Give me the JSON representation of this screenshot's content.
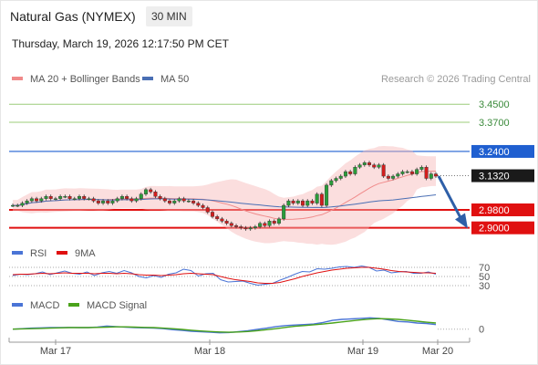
{
  "header": {
    "title": "Natural Gas (NYMEX)",
    "interval": "30 MIN",
    "timestamp": "Thursday, March 19, 2026 12:17:50 PM CET"
  },
  "colors": {
    "candle_up": "#2a9d3a",
    "candle_down": "#d31d1d",
    "resistance": "#1f5fd0",
    "support": "#e01010",
    "target_line": "#9ccc7a",
    "current": "#1a1a1a",
    "ma50": "#4a6fb4",
    "bollinger": "#f08a8a",
    "rsi": "#4a74d6",
    "rsi_ma": "#e01010",
    "macd": "#4a74d6",
    "macd_signal": "#4aa31a",
    "arrow": "#2e5fa8"
  },
  "chart_data": [
    {
      "type": "candlestick",
      "x": [
        "Mar 17",
        "Mar 18",
        "Mar 19",
        "Mar 20"
      ],
      "legend": [
        "MA 20 + Bollinger Bands",
        "MA 50"
      ],
      "watermark": "Research © 2026 Trading Central",
      "levels": [
        {
          "label": "3.4500",
          "value": 3.45,
          "kind": "target"
        },
        {
          "label": "3.3700",
          "value": 3.37,
          "kind": "target"
        },
        {
          "label": "3.2400",
          "value": 3.24,
          "kind": "resistance"
        },
        {
          "label": "3.1320",
          "value": 3.132,
          "kind": "current"
        },
        {
          "label": "2.9800",
          "value": 2.98,
          "kind": "support"
        },
        {
          "label": "2.9000",
          "value": 2.9,
          "kind": "support"
        }
      ],
      "ylim": [
        2.85,
        3.52
      ],
      "close_series": [
        3.0,
        3.0,
        3.01,
        3.02,
        3.03,
        3.02,
        3.03,
        3.04,
        3.03,
        3.03,
        3.04,
        3.04,
        3.03,
        3.03,
        3.04,
        3.03,
        3.03,
        3.02,
        3.01,
        3.02,
        3.01,
        3.02,
        3.03,
        3.04,
        3.03,
        3.02,
        3.03,
        3.05,
        3.07,
        3.06,
        3.04,
        3.03,
        3.02,
        3.01,
        3.02,
        3.03,
        3.02,
        3.02,
        3.01,
        3.0,
        2.99,
        2.97,
        2.95,
        2.94,
        2.93,
        2.92,
        2.91,
        2.905,
        2.9,
        2.895,
        2.9,
        2.905,
        2.92,
        2.91,
        2.93,
        2.92,
        2.94,
        3.0,
        3.02,
        3.01,
        3.02,
        3.0,
        3.02,
        3.01,
        3.05,
        3.0,
        3.09,
        3.11,
        3.12,
        3.13,
        3.15,
        3.14,
        3.17,
        3.18,
        3.19,
        3.18,
        3.17,
        3.18,
        3.13,
        3.12,
        3.13,
        3.14,
        3.15,
        3.15,
        3.14,
        3.16,
        3.17,
        3.12,
        3.14,
        3.13
      ]
    },
    {
      "type": "line",
      "name": "RSI",
      "legend": [
        "RSI",
        "9MA"
      ],
      "y_ticks": [
        "70",
        "50",
        "30"
      ],
      "ylim": [
        20,
        80
      ],
      "series": [
        {
          "name": "RSI",
          "values": [
            52,
            55,
            54,
            56,
            60,
            54,
            58,
            62,
            57,
            55,
            60,
            52,
            58,
            61,
            57,
            63,
            58,
            50,
            47,
            52,
            48,
            55,
            58,
            66,
            63,
            51,
            56,
            57,
            43,
            38,
            39,
            40,
            35,
            31,
            33,
            35,
            42,
            48,
            55,
            61,
            60,
            67,
            66,
            68,
            71,
            72,
            70,
            73,
            70,
            62,
            64,
            58,
            60,
            61,
            57,
            57,
            60,
            55
          ]
        },
        {
          "name": "9MA",
          "values": [
            54,
            55,
            55,
            56,
            57,
            56,
            57,
            58,
            57,
            57,
            57,
            56,
            57,
            57,
            56,
            57,
            56,
            54,
            53,
            53,
            52,
            53,
            54,
            56,
            57,
            56,
            55,
            54,
            50,
            46,
            43,
            41,
            39,
            36,
            35,
            35,
            37,
            41,
            45,
            50,
            54,
            58,
            61,
            64,
            66,
            68,
            69,
            70,
            70,
            68,
            66,
            63,
            61,
            60,
            59,
            58,
            58,
            57
          ]
        }
      ]
    },
    {
      "type": "line",
      "name": "MACD",
      "legend": [
        "MACD",
        "MACD Signal"
      ],
      "y_ticks": [
        "0"
      ],
      "ylim": [
        -0.04,
        0.07
      ],
      "series": [
        {
          "name": "MACD",
          "values": [
            0.0,
            0.002,
            0.004,
            0.005,
            0.006,
            0.006,
            0.007,
            0.006,
            0.006,
            0.008,
            0.012,
            0.01,
            0.008,
            0.006,
            0.005,
            0.004,
            0.002,
            -0.002,
            -0.005,
            -0.008,
            -0.01,
            -0.012,
            -0.014,
            -0.013,
            -0.01,
            -0.006,
            -0.001,
            0.004,
            0.01,
            0.014,
            0.016,
            0.018,
            0.02,
            0.026,
            0.034,
            0.038,
            0.04,
            0.042,
            0.044,
            0.042,
            0.036,
            0.03,
            0.028,
            0.024,
            0.022,
            0.018
          ]
        },
        {
          "name": "MACD Signal",
          "values": [
            0.0,
            0.001,
            0.002,
            0.003,
            0.004,
            0.005,
            0.006,
            0.006,
            0.006,
            0.007,
            0.008,
            0.009,
            0.009,
            0.008,
            0.007,
            0.006,
            0.004,
            0.002,
            -0.001,
            -0.004,
            -0.007,
            -0.009,
            -0.011,
            -0.012,
            -0.011,
            -0.009,
            -0.006,
            -0.002,
            0.002,
            0.007,
            0.011,
            0.014,
            0.017,
            0.02,
            0.024,
            0.028,
            0.032,
            0.036,
            0.039,
            0.041,
            0.04,
            0.038,
            0.035,
            0.031,
            0.027,
            0.024
          ]
        }
      ]
    }
  ]
}
